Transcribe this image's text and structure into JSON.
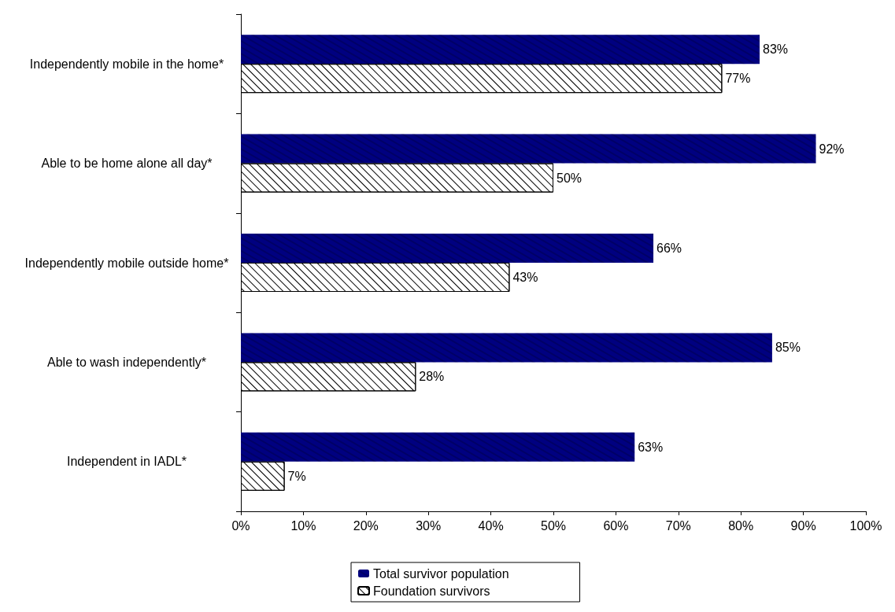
{
  "chart_data": {
    "type": "bar",
    "orientation": "horizontal",
    "categories": [
      "Independently mobile in the home*",
      "Able to be home alone all day*",
      "Independently mobile outside home*",
      "Able to wash independently*",
      "Independent in IADL*"
    ],
    "series": [
      {
        "name": "Total survivor population",
        "color": "#000080",
        "values": [
          83,
          92,
          66,
          85,
          63
        ],
        "value_labels": [
          "83%",
          "92%",
          "66%",
          "85%",
          "63%"
        ]
      },
      {
        "name": "Foundation survivors",
        "color": "#ffffff",
        "values": [
          77,
          50,
          43,
          28,
          7
        ],
        "value_labels": [
          "77%",
          "50%",
          "43%",
          "28%",
          "7%"
        ]
      }
    ],
    "xlim": [
      0,
      100
    ],
    "xticks": [
      {
        "value": 0,
        "label": "0%"
      },
      {
        "value": 10,
        "label": "10%"
      },
      {
        "value": 20,
        "label": "20%"
      },
      {
        "value": 30,
        "label": "30%"
      },
      {
        "value": 40,
        "label": "40%"
      },
      {
        "value": 50,
        "label": "50%"
      },
      {
        "value": 60,
        "label": "60%"
      },
      {
        "value": 70,
        "label": "70%"
      },
      {
        "value": 80,
        "label": "80%"
      },
      {
        "value": 90,
        "label": "90%"
      },
      {
        "value": 100,
        "label": "100%"
      }
    ],
    "grid": false,
    "legend": "bottom"
  }
}
